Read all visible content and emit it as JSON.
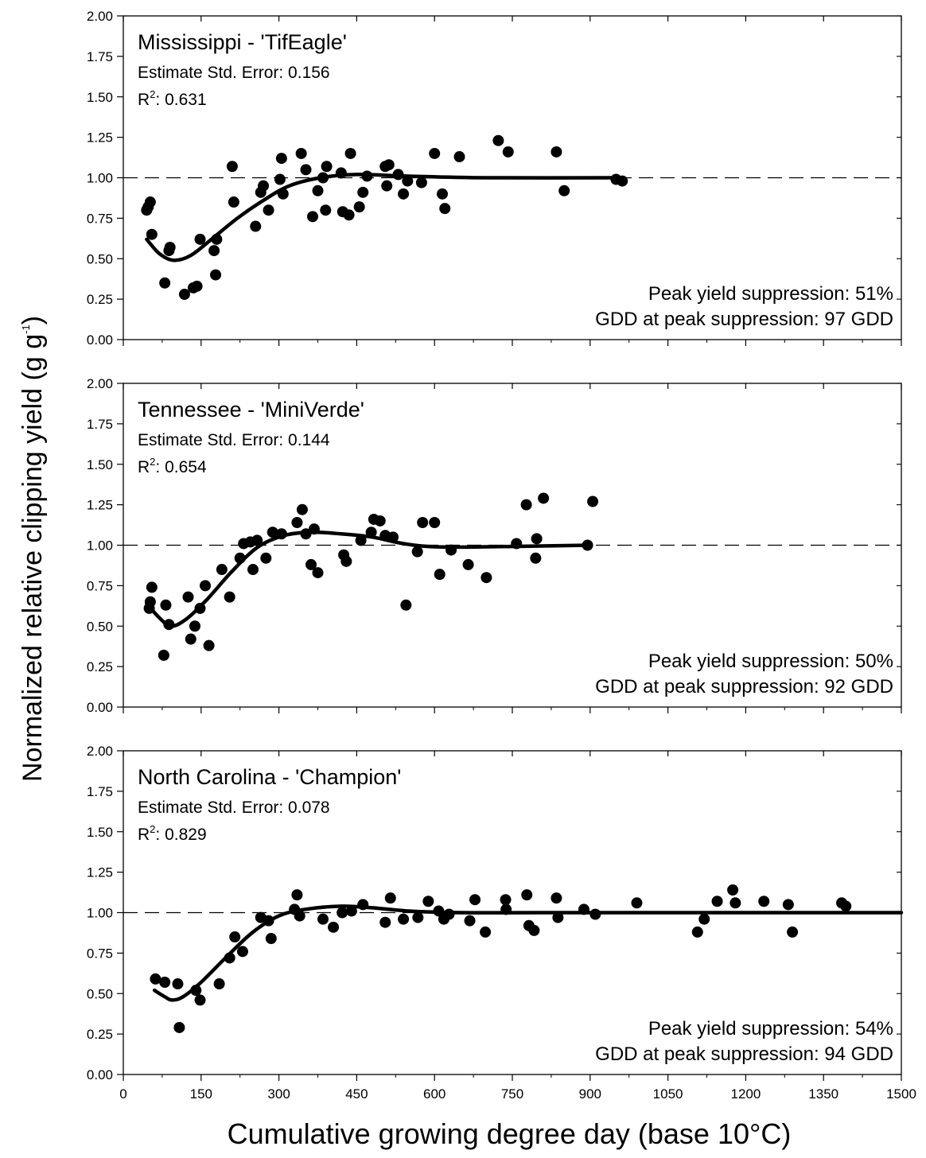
{
  "chart_data": {
    "type": "scatter",
    "xlabel": "Cumulative growing degree day (base 10°C)",
    "ylabel": {
      "main": "Normalized relative clipping yield (g g",
      "superscript": "-1",
      "close": ")"
    },
    "x_ticks": [
      "0",
      "150",
      "300",
      "450",
      "600",
      "750",
      "900",
      "1050",
      "1200",
      "1350",
      "1500"
    ],
    "xlim": [
      0,
      1500
    ],
    "ylim": [
      0,
      2
    ],
    "y_ticks": [
      "0.00",
      "0.25",
      "0.50",
      "0.75",
      "1.00",
      "1.25",
      "1.50",
      "1.75",
      "2.00"
    ],
    "reference_line": 1.0,
    "panels": [
      {
        "title": "Mississippi - 'TifEagle'",
        "std_error_label": "Estimate Std. Error: 0.156",
        "r2_prefix": "R",
        "r2_sup": "2",
        "r2_value": ": 0.631",
        "note_line1": "Peak yield suppression: 51%",
        "note_line2": "GDD at peak suppression: 97 GDD",
        "fit_curve": [
          [
            45,
            0.62
          ],
          [
            70,
            0.53
          ],
          [
            97,
            0.49
          ],
          [
            130,
            0.52
          ],
          [
            170,
            0.62
          ],
          [
            220,
            0.75
          ],
          [
            270,
            0.86
          ],
          [
            320,
            0.95
          ],
          [
            380,
            1.0
          ],
          [
            450,
            1.02
          ],
          [
            550,
            1.01
          ],
          [
            700,
            1.0
          ],
          [
            960,
            1.0
          ]
        ],
        "points": [
          [
            45,
            0.8
          ],
          [
            48,
            0.82
          ],
          [
            52,
            0.85
          ],
          [
            55,
            0.65
          ],
          [
            80,
            0.35
          ],
          [
            88,
            0.55
          ],
          [
            90,
            0.57
          ],
          [
            118,
            0.28
          ],
          [
            135,
            0.32
          ],
          [
            142,
            0.33
          ],
          [
            148,
            0.62
          ],
          [
            175,
            0.55
          ],
          [
            178,
            0.4
          ],
          [
            180,
            0.62
          ],
          [
            210,
            1.07
          ],
          [
            213,
            0.85
          ],
          [
            255,
            0.7
          ],
          [
            265,
            0.91
          ],
          [
            270,
            0.95
          ],
          [
            280,
            0.8
          ],
          [
            302,
            0.99
          ],
          [
            305,
            1.12
          ],
          [
            308,
            0.9
          ],
          [
            343,
            1.15
          ],
          [
            352,
            1.05
          ],
          [
            365,
            0.76
          ],
          [
            375,
            0.92
          ],
          [
            385,
            1.0
          ],
          [
            390,
            0.8
          ],
          [
            392,
            1.07
          ],
          [
            420,
            1.03
          ],
          [
            423,
            0.79
          ],
          [
            435,
            0.77
          ],
          [
            438,
            1.15
          ],
          [
            455,
            0.82
          ],
          [
            462,
            0.91
          ],
          [
            470,
            1.01
          ],
          [
            505,
            1.07
          ],
          [
            508,
            0.95
          ],
          [
            512,
            1.08
          ],
          [
            530,
            1.02
          ],
          [
            540,
            0.9
          ],
          [
            548,
            0.98
          ],
          [
            575,
            0.97
          ],
          [
            600,
            1.15
          ],
          [
            615,
            0.9
          ],
          [
            620,
            0.81
          ],
          [
            648,
            1.13
          ],
          [
            723,
            1.23
          ],
          [
            742,
            1.16
          ],
          [
            835,
            1.16
          ],
          [
            850,
            0.92
          ],
          [
            950,
            0.99
          ],
          [
            962,
            0.98
          ]
        ]
      },
      {
        "title": "Tennessee - 'MiniVerde'",
        "std_error_label": "Estimate Std. Error: 0.144",
        "r2_prefix": "R",
        "r2_sup": "2",
        "r2_value": ": 0.654",
        "note_line1": "Peak yield suppression: 50%",
        "note_line2": "GDD at peak suppression: 92 GDD",
        "fit_curve": [
          [
            45,
            0.64
          ],
          [
            70,
            0.55
          ],
          [
            92,
            0.5
          ],
          [
            120,
            0.54
          ],
          [
            160,
            0.66
          ],
          [
            210,
            0.84
          ],
          [
            260,
            0.99
          ],
          [
            310,
            1.06
          ],
          [
            360,
            1.08
          ],
          [
            420,
            1.07
          ],
          [
            480,
            1.05
          ],
          [
            540,
            1.01
          ],
          [
            600,
            0.99
          ],
          [
            700,
            0.99
          ],
          [
            900,
            1.0
          ]
        ],
        "points": [
          [
            50,
            0.61
          ],
          [
            52,
            0.65
          ],
          [
            55,
            0.74
          ],
          [
            78,
            0.32
          ],
          [
            82,
            0.63
          ],
          [
            88,
            0.51
          ],
          [
            125,
            0.68
          ],
          [
            130,
            0.42
          ],
          [
            138,
            0.5
          ],
          [
            148,
            0.61
          ],
          [
            158,
            0.75
          ],
          [
            165,
            0.38
          ],
          [
            190,
            0.85
          ],
          [
            205,
            0.68
          ],
          [
            225,
            0.92
          ],
          [
            232,
            1.01
          ],
          [
            245,
            1.02
          ],
          [
            250,
            0.85
          ],
          [
            258,
            1.03
          ],
          [
            275,
            0.92
          ],
          [
            288,
            1.08
          ],
          [
            305,
            1.07
          ],
          [
            335,
            1.14
          ],
          [
            345,
            1.22
          ],
          [
            352,
            1.07
          ],
          [
            362,
            0.88
          ],
          [
            368,
            1.1
          ],
          [
            375,
            0.83
          ],
          [
            425,
            0.94
          ],
          [
            430,
            0.9
          ],
          [
            458,
            1.03
          ],
          [
            478,
            1.08
          ],
          [
            483,
            1.16
          ],
          [
            495,
            1.15
          ],
          [
            505,
            1.06
          ],
          [
            520,
            1.05
          ],
          [
            545,
            0.63
          ],
          [
            567,
            0.96
          ],
          [
            577,
            1.14
          ],
          [
            600,
            1.14
          ],
          [
            610,
            0.82
          ],
          [
            632,
            0.97
          ],
          [
            665,
            0.88
          ],
          [
            700,
            0.8
          ],
          [
            758,
            1.01
          ],
          [
            777,
            1.25
          ],
          [
            795,
            0.92
          ],
          [
            797,
            1.04
          ],
          [
            810,
            1.29
          ],
          [
            895,
            1.0
          ],
          [
            905,
            1.27
          ]
        ]
      },
      {
        "title": "North Carolina - 'Champion'",
        "std_error_label": "Estimate Std. Error: 0.078",
        "r2_prefix": "R",
        "r2_sup": "2",
        "r2_value": ": 0.829",
        "note_line1": "Peak yield suppression: 54%",
        "note_line2": "GDD at peak suppression: 94 GDD",
        "fit_curve": [
          [
            60,
            0.52
          ],
          [
            80,
            0.48
          ],
          [
            94,
            0.46
          ],
          [
            115,
            0.48
          ],
          [
            150,
            0.57
          ],
          [
            200,
            0.73
          ],
          [
            250,
            0.88
          ],
          [
            300,
            0.98
          ],
          [
            350,
            1.02
          ],
          [
            420,
            1.04
          ],
          [
            480,
            1.03
          ],
          [
            550,
            1.01
          ],
          [
            650,
            1.0
          ],
          [
            800,
            1.0
          ],
          [
            1100,
            1.0
          ],
          [
            1500,
            1.0
          ]
        ],
        "points": [
          [
            62,
            0.59
          ],
          [
            80,
            0.57
          ],
          [
            105,
            0.56
          ],
          [
            108,
            0.29
          ],
          [
            140,
            0.52
          ],
          [
            148,
            0.46
          ],
          [
            185,
            0.56
          ],
          [
            205,
            0.72
          ],
          [
            215,
            0.85
          ],
          [
            230,
            0.76
          ],
          [
            265,
            0.97
          ],
          [
            280,
            0.95
          ],
          [
            285,
            0.84
          ],
          [
            330,
            1.02
          ],
          [
            335,
            1.11
          ],
          [
            340,
            0.98
          ],
          [
            385,
            0.96
          ],
          [
            405,
            0.91
          ],
          [
            422,
            1.0
          ],
          [
            440,
            1.01
          ],
          [
            462,
            1.05
          ],
          [
            505,
            0.94
          ],
          [
            515,
            1.09
          ],
          [
            540,
            0.96
          ],
          [
            568,
            0.97
          ],
          [
            588,
            1.07
          ],
          [
            608,
            1.01
          ],
          [
            618,
            0.96
          ],
          [
            628,
            0.99
          ],
          [
            668,
            0.95
          ],
          [
            678,
            1.08
          ],
          [
            698,
            0.88
          ],
          [
            737,
            1.08
          ],
          [
            738,
            1.02
          ],
          [
            778,
            1.11
          ],
          [
            782,
            0.92
          ],
          [
            792,
            0.89
          ],
          [
            835,
            1.09
          ],
          [
            838,
            0.97
          ],
          [
            888,
            1.02
          ],
          [
            910,
            0.99
          ],
          [
            990,
            1.06
          ],
          [
            1107,
            0.88
          ],
          [
            1120,
            0.96
          ],
          [
            1145,
            1.07
          ],
          [
            1175,
            1.14
          ],
          [
            1180,
            1.06
          ],
          [
            1235,
            1.07
          ],
          [
            1282,
            1.05
          ],
          [
            1290,
            0.88
          ],
          [
            1385,
            1.06
          ],
          [
            1393,
            1.04
          ]
        ]
      }
    ]
  }
}
